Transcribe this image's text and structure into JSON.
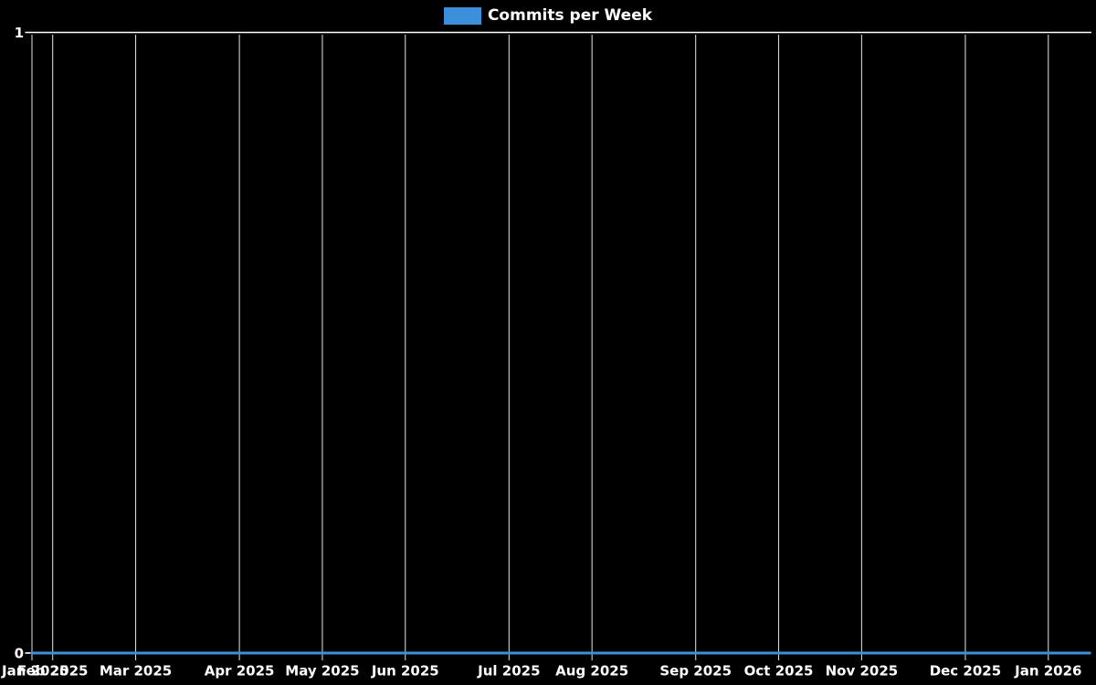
{
  "page": {
    "background": "#000000",
    "text_color": "#ffffff"
  },
  "legend": {
    "label": "Commits per Week",
    "swatch_color": "#3C90DB"
  },
  "colors": {
    "background": "#000000",
    "grid": "rgba(255,255,255,0.9)",
    "axis_text": "#ffffff",
    "line": "#3C90DB"
  },
  "chart_data": {
    "type": "line",
    "title": "Commits per Week",
    "xlabel": "",
    "ylabel": "",
    "legend_position": "top-center",
    "grid": "vertical month gridlines; horizontal line at y=1 only; x unit = weeks",
    "ylim": [
      0,
      1
    ],
    "y_ticks": [
      {
        "label": "0",
        "value": 0
      },
      {
        "label": "1",
        "value": 1
      }
    ],
    "x_ticks": [
      {
        "label": "Jan 2025",
        "week": 0
      },
      {
        "label": "Feb 2025",
        "week": 1
      },
      {
        "label": "Mar 2025",
        "week": 5
      },
      {
        "label": "Apr 2025",
        "week": 10
      },
      {
        "label": "May 2025",
        "week": 14
      },
      {
        "label": "Jun 2025",
        "week": 18
      },
      {
        "label": "Jul 2025",
        "week": 23
      },
      {
        "label": "Aug 2025",
        "week": 27
      },
      {
        "label": "Sep 2025",
        "week": 32
      },
      {
        "label": "Oct 2025",
        "week": 36
      },
      {
        "label": "Nov 2025",
        "week": 40
      },
      {
        "label": "Dec 2025",
        "week": 45
      },
      {
        "label": "Jan 2026",
        "week": 49
      }
    ],
    "series": [
      {
        "name": "Commits per Week",
        "color": "#3C90DB",
        "x_weeks": [
          0,
          1,
          2,
          3,
          4,
          5,
          6,
          7,
          8,
          9,
          10,
          11,
          12,
          13,
          14,
          15,
          16,
          17,
          18,
          19,
          20,
          21,
          22,
          23,
          24,
          25,
          26,
          27,
          28,
          29,
          30,
          31,
          32,
          33,
          34,
          35,
          36,
          37,
          38,
          39,
          40,
          41,
          42,
          43,
          44,
          45,
          46,
          47,
          48,
          49,
          50,
          51
        ],
        "values": [
          0,
          0,
          0,
          0,
          0,
          0,
          0,
          0,
          0,
          0,
          0,
          0,
          0,
          0,
          0,
          0,
          0,
          0,
          0,
          0,
          0,
          0,
          0,
          0,
          0,
          0,
          0,
          0,
          0,
          0,
          0,
          0,
          0,
          0,
          0,
          0,
          0,
          0,
          0,
          0,
          0,
          0,
          0,
          0,
          0,
          0,
          0,
          0,
          0,
          0,
          0,
          0
        ]
      }
    ]
  }
}
